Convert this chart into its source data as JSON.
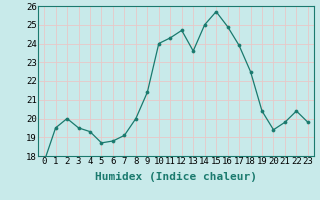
{
  "x": [
    0,
    1,
    2,
    3,
    4,
    5,
    6,
    7,
    8,
    9,
    10,
    11,
    12,
    13,
    14,
    15,
    16,
    17,
    18,
    19,
    20,
    21,
    22,
    23
  ],
  "y": [
    17.7,
    19.5,
    20.0,
    19.5,
    19.3,
    18.7,
    18.8,
    19.1,
    20.0,
    21.4,
    24.0,
    24.3,
    24.7,
    23.6,
    25.0,
    25.7,
    24.9,
    23.9,
    22.5,
    20.4,
    19.4,
    19.8,
    20.4,
    19.8
  ],
  "ylim": [
    18,
    26
  ],
  "yticks": [
    18,
    19,
    20,
    21,
    22,
    23,
    24,
    25,
    26
  ],
  "xlabel": "Humidex (Indice chaleur)",
  "line_color": "#1a7a6e",
  "marker": "o",
  "marker_size": 2.2,
  "bg_color": "#c8eaea",
  "grid_color": "#b0d8d8",
  "tick_fontsize": 6.5,
  "xlabel_fontsize": 8,
  "fig_bg": "#c8eaea"
}
